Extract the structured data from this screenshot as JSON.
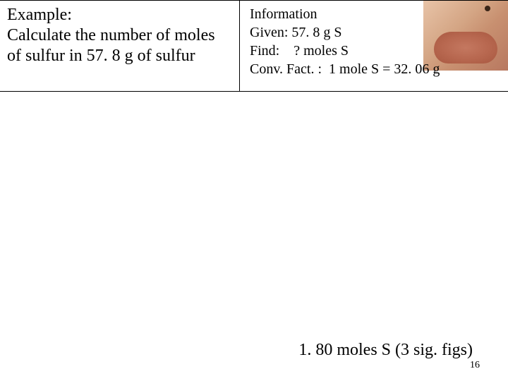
{
  "example": {
    "heading": "Example:",
    "problem": "Calculate the number of moles of sulfur in 57. 8 g of sulfur"
  },
  "info": {
    "title": "Information",
    "given": "Given: 57. 8 g S",
    "find": "Find:    ? moles S",
    "conv": "Conv. Fact. :  1 mole S = 32. 06 g"
  },
  "answer": "1. 80  moles S (3 sig. figs)",
  "page_number": "16",
  "colors": {
    "text": "#000000",
    "background": "#ffffff",
    "border": "#000000"
  }
}
